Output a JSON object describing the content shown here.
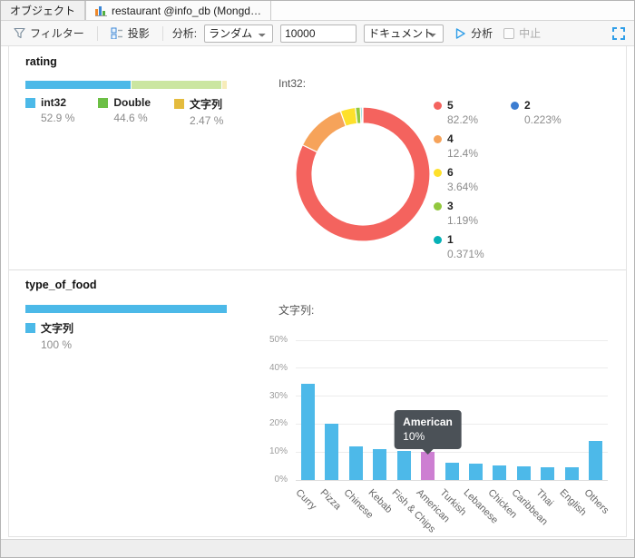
{
  "tabs": [
    {
      "label": "オブジェクト"
    },
    {
      "label": "restaurant @info_db (Mongd…",
      "icon": "bar-chart-icon"
    }
  ],
  "toolbar": {
    "filter_label": "フィルター",
    "projection_label": "投影",
    "analyze_prefix": "分析:",
    "sample_mode_value": "ランダム",
    "sample_size_value": "10000",
    "scope_value": "ドキュメント",
    "run_label": "分析",
    "abort_label": "中止"
  },
  "sections": {
    "rating": {
      "title": "rating",
      "types": [
        {
          "name": "int32",
          "pct": "52.9 %",
          "value": 52.9,
          "swatch": "#4cb9e8",
          "bar_color": "#4cb9e8"
        },
        {
          "name": "Double",
          "pct": "44.6 %",
          "value": 44.6,
          "swatch": "#6cbf45",
          "bar_color": "#cbe6a1"
        },
        {
          "name": "文字列",
          "pct": "2.47 %",
          "value": 2.47,
          "swatch": "#e4bb3d",
          "bar_color": "#f7ecb9"
        }
      ]
    },
    "type_of_food": {
      "title": "type_of_food",
      "types": [
        {
          "name": "文字列",
          "pct": "100 %",
          "value": 100,
          "swatch": "#4cb9e8",
          "bar_color": "#4cb9e8"
        }
      ]
    }
  },
  "chart_data": [
    {
      "type": "pie",
      "variant": "donut",
      "field": "rating",
      "title": "Int32:",
      "slices": [
        {
          "label": "5",
          "pct_label": "82.2%",
          "value": 82.2,
          "color": "#f4635e"
        },
        {
          "label": "4",
          "pct_label": "12.4%",
          "value": 12.4,
          "color": "#f6a35a"
        },
        {
          "label": "6",
          "pct_label": "3.64%",
          "value": 3.64,
          "color": "#fee02b"
        },
        {
          "label": "3",
          "pct_label": "1.19%",
          "value": 1.19,
          "color": "#92c83e"
        },
        {
          "label": "1",
          "pct_label": "0.371%",
          "value": 0.371,
          "color": "#06b1b6"
        },
        {
          "label": "2",
          "pct_label": "0.223%",
          "value": 0.223,
          "color": "#3c7dd1"
        }
      ],
      "legend_columns": [
        [
          0,
          1,
          2,
          3,
          4
        ],
        [
          5
        ]
      ],
      "legend_position": "right"
    },
    {
      "type": "bar",
      "field": "type_of_food",
      "title": "文字列:",
      "categories": [
        "Curry",
        "Pizza",
        "Chinese",
        "Kebab",
        "Fish & Chips",
        "American",
        "Turkish",
        "Lebanese",
        "Chicken",
        "Caribbean",
        "Thai",
        "English",
        "Others"
      ],
      "values": [
        34.3,
        20,
        12,
        11,
        10.3,
        10,
        6.2,
        5.9,
        5.3,
        4.8,
        4.4,
        4.4,
        13.9
      ],
      "ylim": [
        0,
        50
      ],
      "yticks": [
        "0%",
        "10%",
        "20%",
        "30%",
        "40%",
        "50%"
      ],
      "grid": true,
      "bar_color": "#4db9e9",
      "highlight_index": 5,
      "highlight_color": "#cd7fd2",
      "tooltip": {
        "label": "American",
        "value": "10%",
        "bg": "#4b5157"
      }
    }
  ]
}
